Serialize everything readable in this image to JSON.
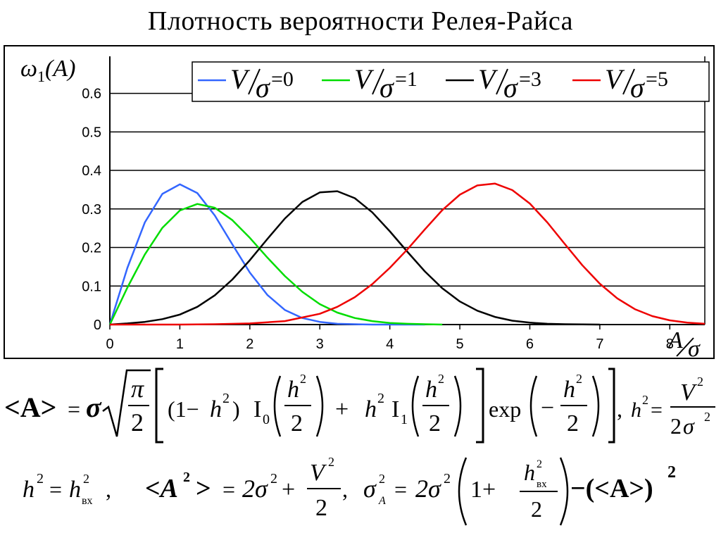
{
  "title": "Плотность вероятности Релея-Райса",
  "chart_data": {
    "type": "line",
    "title": "Плотность вероятности Релея-Райса",
    "ylabel": {
      "main": "ω",
      "sub": "1",
      "arg": "(A)"
    },
    "xlabel": {
      "num": "A",
      "den": "σ"
    },
    "xlim": [
      0,
      8.5
    ],
    "ylim": [
      0,
      0.6
    ],
    "xticks": [
      "0",
      "1",
      "2",
      "3",
      "4",
      "5",
      "6",
      "7",
      "8"
    ],
    "yticks": [
      "0",
      "0.1",
      "0.2",
      "0.3",
      "0.4",
      "0.5",
      "0.6"
    ],
    "grid": "horizontal",
    "legend_position": "top",
    "series": [
      {
        "name": "V/σ=0",
        "legend_value": "0",
        "color": "#3366ff",
        "x": [
          0,
          0.25,
          0.5,
          0.75,
          1.0,
          1.25,
          1.5,
          1.75,
          2.0,
          2.25,
          2.5,
          2.75,
          3.0,
          3.25,
          3.5,
          3.75,
          4.0,
          4.25,
          4.5
        ],
        "y": [
          0,
          0.147,
          0.265,
          0.339,
          0.364,
          0.341,
          0.283,
          0.208,
          0.135,
          0.077,
          0.038,
          0.017,
          0.007,
          0.002,
          0.001,
          0.0,
          0.0,
          0.0,
          0.0
        ]
      },
      {
        "name": "V/σ=1",
        "legend_value": "1",
        "color": "#00dd00",
        "x": [
          0,
          0.25,
          0.5,
          0.75,
          1.0,
          1.25,
          1.5,
          1.75,
          2.0,
          2.25,
          2.5,
          2.75,
          3.0,
          3.25,
          3.5,
          3.75,
          4.0,
          4.25,
          4.5,
          4.75
        ],
        "y": [
          0,
          0.096,
          0.182,
          0.251,
          0.296,
          0.313,
          0.303,
          0.271,
          0.225,
          0.174,
          0.126,
          0.085,
          0.053,
          0.031,
          0.017,
          0.009,
          0.004,
          0.002,
          0.001,
          0.0
        ]
      },
      {
        "name": "V/σ=3",
        "legend_value": "3",
        "color": "#000000",
        "x": [
          0,
          0.25,
          0.5,
          0.75,
          1.0,
          1.25,
          1.5,
          1.75,
          2.0,
          2.25,
          2.5,
          2.75,
          3.0,
          3.25,
          3.5,
          3.75,
          4.0,
          4.25,
          4.5,
          4.75,
          5.0,
          5.25,
          5.5,
          5.75,
          6.0,
          6.25,
          6.5,
          7.0
        ],
        "y": [
          0,
          0.003,
          0.007,
          0.014,
          0.026,
          0.046,
          0.076,
          0.117,
          0.167,
          0.222,
          0.275,
          0.318,
          0.343,
          0.346,
          0.328,
          0.291,
          0.242,
          0.189,
          0.138,
          0.094,
          0.06,
          0.036,
          0.02,
          0.01,
          0.005,
          0.002,
          0.001,
          0.0
        ]
      },
      {
        "name": "V/σ=5",
        "legend_value": "5",
        "color": "#ee0000",
        "x": [
          0,
          1.0,
          1.5,
          2.0,
          2.5,
          3.0,
          3.25,
          3.5,
          3.75,
          4.0,
          4.25,
          4.5,
          4.75,
          5.0,
          5.25,
          5.5,
          5.75,
          6.0,
          6.25,
          6.5,
          6.75,
          7.0,
          7.25,
          7.5,
          7.75,
          8.0,
          8.25,
          8.5
        ],
        "y": [
          0,
          0.0,
          0.001,
          0.003,
          0.009,
          0.028,
          0.046,
          0.071,
          0.105,
          0.147,
          0.195,
          0.247,
          0.297,
          0.337,
          0.361,
          0.366,
          0.349,
          0.314,
          0.265,
          0.209,
          0.154,
          0.106,
          0.068,
          0.04,
          0.022,
          0.011,
          0.005,
          0.002
        ]
      }
    ]
  },
  "formulas": {
    "mean_amplitude": {
      "lhs": "<A>",
      "eq": "=",
      "sigma": "σ",
      "pi": "π",
      "two": "2",
      "one_minus": "(1−",
      "h": "h",
      "sq": "2",
      "close_paren": ")",
      "I": "I",
      "I0_sub": "0",
      "I1_sub": "1",
      "plus": "+",
      "exp": "exp",
      "minus": "−",
      "comma": ",",
      "V": "V"
    },
    "second_line": {
      "h2_eq": "h",
      "h_vx_sub": "вх",
      "comma": ",",
      "A2_lhs": "<A",
      "A2_close": ">",
      "eq": "=",
      "two_sigma": "2σ",
      "plus": "+",
      "V": "V",
      "two": "2",
      "sigmaA": "σ",
      "subA": "A",
      "one_plus": "1+",
      "minus_mean": "−(<A>)",
      "sq": "2"
    }
  }
}
